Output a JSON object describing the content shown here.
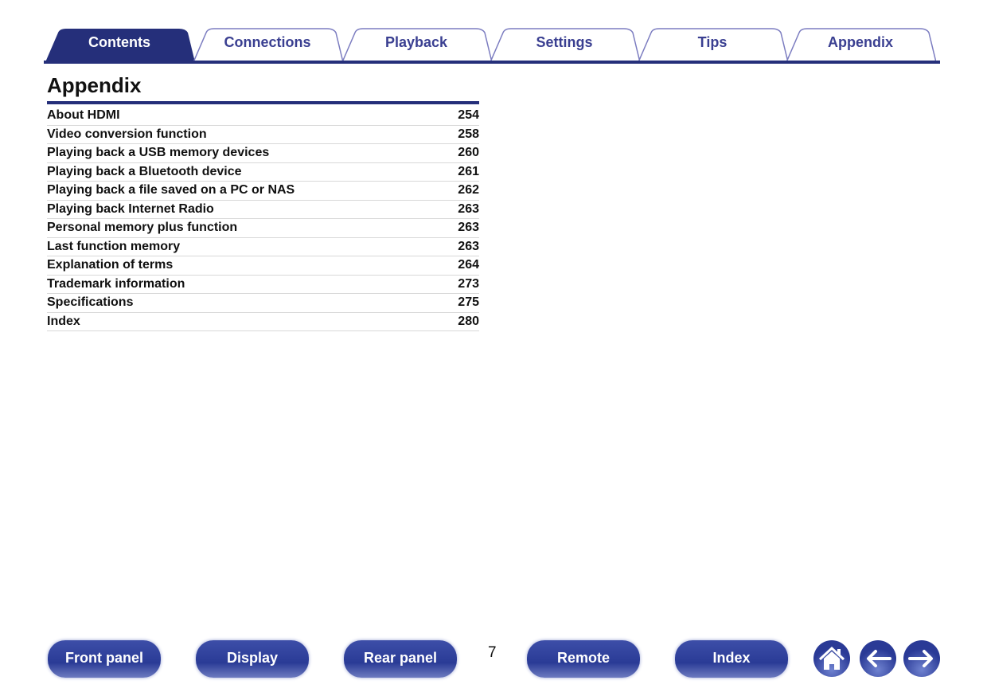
{
  "tabs": [
    {
      "label": "Contents",
      "active": true
    },
    {
      "label": "Connections"
    },
    {
      "label": "Playback"
    },
    {
      "label": "Settings"
    },
    {
      "label": "Tips"
    },
    {
      "label": "Appendix"
    }
  ],
  "colors": {
    "accent": "#252f7a",
    "tab_outline": "#7b7cc0",
    "tab_text": "#3a3f91"
  },
  "section": {
    "title": "Appendix"
  },
  "toc": [
    {
      "label": "About HDMI",
      "page": "254"
    },
    {
      "label": "Video conversion function",
      "page": "258"
    },
    {
      "label": "Playing back a USB memory devices",
      "page": "260"
    },
    {
      "label": "Playing back a Bluetooth device",
      "page": "261"
    },
    {
      "label": "Playing back a file saved on a PC or NAS",
      "page": "262"
    },
    {
      "label": "Playing back Internet Radio",
      "page": "263"
    },
    {
      "label": "Personal memory plus function",
      "page": "263"
    },
    {
      "label": "Last function memory",
      "page": "263"
    },
    {
      "label": "Explanation of terms",
      "page": "264"
    },
    {
      "label": "Trademark information",
      "page": "273"
    },
    {
      "label": "Specifications",
      "page": "275"
    },
    {
      "label": "Index",
      "page": "280"
    }
  ],
  "footer": {
    "front_panel": "Front panel",
    "display": "Display",
    "rear_panel": "Rear panel",
    "page_number": "7",
    "remote": "Remote",
    "index": "Index",
    "icons": [
      "home-icon",
      "back-arrow-icon",
      "forward-arrow-icon"
    ]
  }
}
